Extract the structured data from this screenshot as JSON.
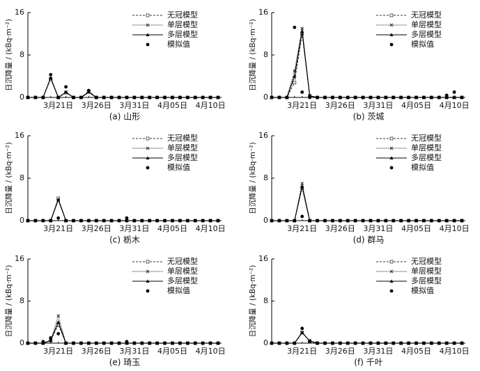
{
  "chart_data": [
    {
      "type": "line",
      "caption": "(a) 山形",
      "ylabel": "日沉降量 / (kBq·m⁻²)",
      "ylim": [
        0,
        16
      ],
      "yticks": [
        0,
        8,
        16
      ],
      "legend": "upper right",
      "categories": [
        null,
        null,
        null,
        null,
        "3月21日",
        null,
        null,
        null,
        null,
        "3月26日",
        null,
        null,
        null,
        null,
        "3月31日",
        null,
        null,
        null,
        null,
        "4月05日",
        null,
        null,
        null,
        null,
        "4月10日",
        null
      ],
      "series": [
        {
          "name": "无冠模型",
          "color": "#333333",
          "dash": "dashed",
          "marker": "square",
          "line": true,
          "values": [
            0,
            0,
            0,
            3.5,
            0,
            0.9,
            0,
            0,
            1.2,
            0,
            0,
            0,
            0,
            0,
            0,
            0,
            0,
            0,
            0,
            0,
            0,
            0,
            0,
            0,
            0,
            0
          ]
        },
        {
          "name": "单层模型",
          "color": "#222222",
          "dash": "dotted",
          "marker": "x",
          "line": true,
          "values": [
            0,
            0,
            0,
            3.6,
            0,
            1.0,
            0,
            0,
            1.1,
            0,
            0,
            0,
            0,
            0,
            0,
            0,
            0,
            0,
            0,
            0,
            0,
            0,
            0,
            0,
            0,
            0
          ]
        },
        {
          "name": "多层模型",
          "color": "#000000",
          "dash": "solid",
          "marker": "triangle",
          "line": true,
          "values": [
            0,
            0,
            0,
            3.7,
            0,
            1.0,
            0,
            0,
            1.0,
            0,
            0,
            0,
            0,
            0,
            0,
            0,
            0,
            0,
            0,
            0,
            0,
            0,
            0,
            0,
            0,
            0
          ]
        },
        {
          "name": "模拟值",
          "color": "#000000",
          "dash": "none",
          "marker": "dot",
          "line": false,
          "values": [
            0,
            0,
            0,
            4.3,
            0,
            2.0,
            0,
            0,
            1.3,
            0,
            0,
            0,
            0,
            0,
            0,
            0,
            0,
            0,
            0,
            0,
            0,
            0,
            0,
            0,
            0,
            0
          ]
        }
      ]
    },
    {
      "type": "line",
      "caption": "(b) 茨城",
      "ylabel": "日沉降量 / (kBq·m⁻²)",
      "ylim": [
        0,
        16
      ],
      "yticks": [
        0,
        8,
        16
      ],
      "legend": "upper right",
      "categories": [
        null,
        null,
        null,
        null,
        "3月21日",
        null,
        null,
        null,
        null,
        "3月26日",
        null,
        null,
        null,
        null,
        "3月31日",
        null,
        null,
        null,
        null,
        "4月05日",
        null,
        null,
        null,
        null,
        "4月10日",
        null
      ],
      "series": [
        {
          "name": "无冠模型",
          "color": "#333333",
          "dash": "dashed",
          "marker": "square",
          "line": true,
          "values": [
            0,
            0,
            0,
            2.8,
            12.0,
            0.3,
            0,
            0,
            0,
            0,
            0,
            0,
            0,
            0,
            0,
            0,
            0,
            0,
            0,
            0,
            0,
            0,
            0,
            0,
            0,
            0
          ]
        },
        {
          "name": "单层模型",
          "color": "#222222",
          "dash": "dotted",
          "marker": "x",
          "line": true,
          "values": [
            0,
            0,
            0,
            5.0,
            13.0,
            0.3,
            0,
            0,
            0,
            0,
            0,
            0,
            0,
            0,
            0,
            0,
            0,
            0,
            0,
            0,
            0,
            0,
            0,
            0,
            0,
            0
          ]
        },
        {
          "name": "多层模型",
          "color": "#000000",
          "dash": "solid",
          "marker": "triangle",
          "line": true,
          "values": [
            0,
            0,
            0,
            4.0,
            12.5,
            0.3,
            0,
            0,
            0,
            0,
            0,
            0,
            0,
            0,
            0,
            0,
            0,
            0,
            0,
            0,
            0,
            0,
            0,
            0,
            0,
            0
          ]
        },
        {
          "name": "模拟值",
          "color": "#000000",
          "dash": "none",
          "marker": "dot",
          "line": false,
          "values": [
            0,
            0,
            0,
            13.2,
            1.0,
            0,
            0,
            0,
            0,
            0,
            0,
            0,
            0,
            0,
            0,
            0,
            0,
            0,
            0,
            0,
            0,
            0,
            0,
            0.4,
            1.0,
            0
          ]
        }
      ]
    },
    {
      "type": "line",
      "caption": "(c) 栃木",
      "ylabel": "日沉降量 / (kBq·m⁻²)",
      "ylim": [
        0,
        16
      ],
      "yticks": [
        0,
        8,
        16
      ],
      "legend": "upper right",
      "categories": [
        null,
        null,
        null,
        null,
        "3月21日",
        null,
        null,
        null,
        null,
        "3月26日",
        null,
        null,
        null,
        null,
        "3月31日",
        null,
        null,
        null,
        null,
        "4月05日",
        null,
        null,
        null,
        null,
        "4月10日",
        null
      ],
      "series": [
        {
          "name": "无冠模型",
          "color": "#333333",
          "dash": "dashed",
          "marker": "square",
          "line": true,
          "values": [
            0,
            0,
            0,
            0,
            4.2,
            0,
            0,
            0,
            0,
            0,
            0,
            0,
            0,
            0,
            0,
            0,
            0,
            0,
            0,
            0,
            0,
            0,
            0,
            0,
            0,
            0
          ]
        },
        {
          "name": "单层模型",
          "color": "#222222",
          "dash": "dotted",
          "marker": "x",
          "line": true,
          "values": [
            0,
            0,
            0,
            0,
            3.8,
            0,
            0,
            0,
            0,
            0,
            0,
            0,
            0,
            0,
            0,
            0,
            0,
            0,
            0,
            0,
            0,
            0,
            0,
            0,
            0,
            0
          ]
        },
        {
          "name": "多层模型",
          "color": "#000000",
          "dash": "solid",
          "marker": "triangle",
          "line": true,
          "values": [
            0,
            0,
            0,
            0,
            4.0,
            0,
            0,
            0,
            0,
            0,
            0,
            0,
            0,
            0,
            0,
            0,
            0,
            0,
            0,
            0,
            0,
            0,
            0,
            0,
            0,
            0
          ]
        },
        {
          "name": "模拟值",
          "color": "#000000",
          "dash": "none",
          "marker": "dot",
          "line": false,
          "values": [
            0,
            0,
            0,
            0,
            0.5,
            0,
            0,
            0,
            0,
            0,
            0,
            0,
            0,
            0.5,
            0,
            0,
            0,
            0,
            0,
            0,
            0,
            0,
            0,
            0,
            0,
            0
          ]
        }
      ]
    },
    {
      "type": "line",
      "caption": "(d) 群马",
      "ylabel": "日沉降量 / (kBq·m⁻²)",
      "ylim": [
        0,
        16
      ],
      "yticks": [
        0,
        8,
        16
      ],
      "legend": "upper right",
      "categories": [
        null,
        null,
        null,
        null,
        "3月21日",
        null,
        null,
        null,
        null,
        "3月26日",
        null,
        null,
        null,
        null,
        "3月31日",
        null,
        null,
        null,
        null,
        "4月05日",
        null,
        null,
        null,
        null,
        "4月10日",
        null
      ],
      "series": [
        {
          "name": "无冠模型",
          "color": "#333333",
          "dash": "dashed",
          "marker": "square",
          "line": true,
          "values": [
            0,
            0,
            0,
            0,
            6.2,
            0,
            0,
            0,
            0,
            0,
            0,
            0,
            0,
            0,
            0,
            0,
            0,
            0,
            0,
            0,
            0,
            0,
            0,
            0,
            0,
            0
          ]
        },
        {
          "name": "单层模型",
          "color": "#222222",
          "dash": "dotted",
          "marker": "x",
          "line": true,
          "values": [
            0,
            0,
            0,
            0,
            7.0,
            0,
            0,
            0,
            0,
            0,
            0,
            0,
            0,
            0,
            0,
            0,
            0,
            0,
            0,
            0,
            0,
            0,
            0,
            0,
            0,
            0
          ]
        },
        {
          "name": "多层模型",
          "color": "#000000",
          "dash": "solid",
          "marker": "triangle",
          "line": true,
          "values": [
            0,
            0,
            0,
            0,
            6.5,
            0,
            0,
            0,
            0,
            0,
            0,
            0,
            0,
            0,
            0,
            0,
            0,
            0,
            0,
            0,
            0,
            0,
            0,
            0,
            0,
            0
          ]
        },
        {
          "name": "模拟值",
          "color": "#000000",
          "dash": "none",
          "marker": "dot",
          "line": false,
          "values": [
            0,
            0,
            0,
            0,
            0.8,
            0,
            0,
            0,
            0,
            0,
            0,
            0,
            0,
            0,
            0,
            0,
            0,
            0,
            0,
            0,
            0,
            0,
            0,
            0,
            0,
            0
          ]
        }
      ]
    },
    {
      "type": "line",
      "caption": "(e) 琦玉",
      "ylabel": "日沉降量 / (kBq·m⁻²)",
      "ylim": [
        0,
        16
      ],
      "yticks": [
        0,
        8,
        16
      ],
      "legend": "upper right",
      "categories": [
        null,
        null,
        null,
        null,
        "3月21日",
        null,
        null,
        null,
        null,
        "3月26日",
        null,
        null,
        null,
        null,
        "3月31日",
        null,
        null,
        null,
        null,
        "4月05日",
        null,
        null,
        null,
        null,
        "4月10日",
        null
      ],
      "series": [
        {
          "name": "无冠模型",
          "color": "#333333",
          "dash": "dashed",
          "marker": "square",
          "line": true,
          "values": [
            0,
            0,
            0,
            0.5,
            3.5,
            0,
            0,
            0,
            0,
            0,
            0,
            0,
            0,
            0,
            0,
            0,
            0,
            0,
            0,
            0,
            0,
            0,
            0,
            0,
            0,
            0
          ]
        },
        {
          "name": "单层模型",
          "color": "#222222",
          "dash": "dotted",
          "marker": "x",
          "line": true,
          "values": [
            0,
            0,
            0,
            0.5,
            5.2,
            0,
            0,
            0,
            0,
            0,
            0,
            0,
            0,
            0,
            0,
            0,
            0,
            0,
            0,
            0,
            0,
            0,
            0,
            0,
            0,
            0
          ]
        },
        {
          "name": "多层模型",
          "color": "#000000",
          "dash": "solid",
          "marker": "triangle",
          "line": true,
          "values": [
            0,
            0,
            0,
            0.5,
            4.0,
            0,
            0,
            0,
            0,
            0,
            0,
            0,
            0,
            0,
            0,
            0,
            0,
            0,
            0,
            0,
            0,
            0,
            0,
            0,
            0,
            0
          ]
        },
        {
          "name": "模拟值",
          "color": "#000000",
          "dash": "none",
          "marker": "dot",
          "line": false,
          "values": [
            0,
            0,
            0.3,
            1.0,
            1.8,
            0,
            0,
            0,
            0,
            0,
            0,
            0,
            0,
            0.3,
            0,
            0,
            0,
            0,
            0,
            0,
            0,
            0,
            0,
            0,
            0,
            0
          ]
        }
      ]
    },
    {
      "type": "line",
      "caption": "(f) 千叶",
      "ylabel": "日沉降量 / (kBq·m⁻²)",
      "ylim": [
        0,
        16
      ],
      "yticks": [
        0,
        8,
        16
      ],
      "legend": "upper right",
      "categories": [
        null,
        null,
        null,
        null,
        "3月21日",
        null,
        null,
        null,
        null,
        "3月26日",
        null,
        null,
        null,
        null,
        "3月31日",
        null,
        null,
        null,
        null,
        "4月05日",
        null,
        null,
        null,
        null,
        "4月10日",
        null
      ],
      "series": [
        {
          "name": "无冠模型",
          "color": "#333333",
          "dash": "dashed",
          "marker": "square",
          "line": true,
          "values": [
            0,
            0,
            0,
            0,
            2.0,
            0.4,
            0,
            0,
            0,
            0,
            0,
            0,
            0,
            0,
            0,
            0,
            0,
            0,
            0,
            0,
            0,
            0,
            0,
            0,
            0,
            0
          ]
        },
        {
          "name": "单层模型",
          "color": "#222222",
          "dash": "dotted",
          "marker": "x",
          "line": true,
          "values": [
            0,
            0,
            0,
            0,
            2.1,
            0.4,
            0,
            0,
            0,
            0,
            0,
            0,
            0,
            0,
            0,
            0,
            0,
            0,
            0,
            0,
            0,
            0,
            0,
            0,
            0,
            0
          ]
        },
        {
          "name": "多层模型",
          "color": "#000000",
          "dash": "solid",
          "marker": "triangle",
          "line": true,
          "values": [
            0,
            0,
            0,
            0,
            2.0,
            0.4,
            0,
            0,
            0,
            0,
            0,
            0,
            0,
            0,
            0,
            0,
            0,
            0,
            0,
            0,
            0,
            0,
            0,
            0,
            0,
            0
          ]
        },
        {
          "name": "模拟值",
          "color": "#000000",
          "dash": "none",
          "marker": "dot",
          "line": false,
          "values": [
            0,
            0,
            0,
            0,
            2.8,
            0.4,
            0,
            0,
            0,
            0,
            0,
            0,
            0,
            0,
            0,
            0,
            0,
            0,
            0,
            0,
            0,
            0,
            0,
            0,
            0,
            0
          ]
        }
      ]
    }
  ]
}
